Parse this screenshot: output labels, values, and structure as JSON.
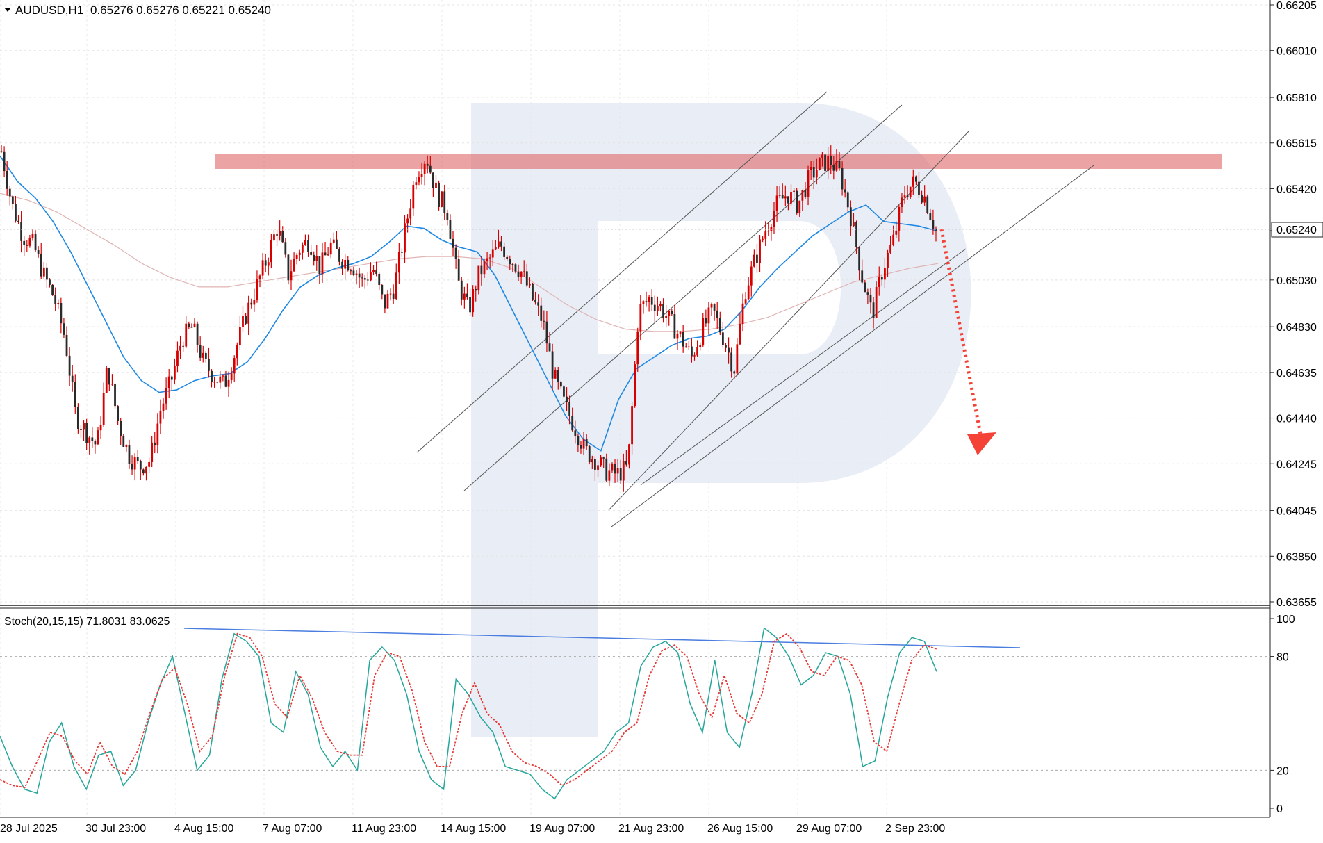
{
  "header": {
    "symbol": "AUDUSD,H1",
    "ohlc": "0.65276 0.65276 0.65221 0.65240"
  },
  "stoch_header": "Stoch(20,15,15) 71.8031 83.0625",
  "current_price_label": "0.65240",
  "colors": {
    "candle": "#d60000",
    "ma_fast": "#1e88e5",
    "ma_slow": "#e0b4b4",
    "resistance_zone": "#e06666",
    "forecast_arrow": "#f44336",
    "stoch_main": "#26a69a",
    "stoch_signal": "#e53935",
    "stoch_trendline": "#4a7de0",
    "watermark": "#e8ecf4"
  },
  "chart_data": [
    {
      "type": "candlestick",
      "title": "AUDUSD,H1",
      "y_ticks": [
        "0.66205",
        "0.66010",
        "0.65810",
        "0.65615",
        "0.65420",
        "0.65240",
        "0.65030",
        "0.64830",
        "0.64635",
        "0.64440",
        "0.64245",
        "0.64045",
        "0.63850",
        "0.63655"
      ],
      "x_ticks": [
        "28 Jul 2025",
        "30 Jul 23:00",
        "4 Aug 15:00",
        "7 Aug 07:00",
        "11 Aug 23:00",
        "14 Aug 15:00",
        "19 Aug 07:00",
        "21 Aug 23:00",
        "26 Aug 15:00",
        "29 Aug 07:00",
        "2 Sep 23:00"
      ],
      "ylim": [
        0.63655,
        0.66205
      ],
      "last_price": 0.6524,
      "resistance_zone": [
        0.6549,
        0.6556
      ],
      "price_path": [
        0.6558,
        0.6535,
        0.6522,
        0.6518,
        0.6505,
        0.6495,
        0.6478,
        0.6445,
        0.6438,
        0.6432,
        0.6466,
        0.6442,
        0.6428,
        0.6423,
        0.6426,
        0.6448,
        0.646,
        0.6478,
        0.6483,
        0.6468,
        0.6462,
        0.6458,
        0.6472,
        0.6488,
        0.65,
        0.6512,
        0.6526,
        0.6505,
        0.6516,
        0.652,
        0.6508,
        0.6518,
        0.6512,
        0.651,
        0.6502,
        0.6508,
        0.6492,
        0.65,
        0.6524,
        0.6548,
        0.6556,
        0.654,
        0.6532,
        0.6502,
        0.649,
        0.6506,
        0.6512,
        0.6518,
        0.6512,
        0.6506,
        0.6495,
        0.6485,
        0.6462,
        0.645,
        0.644,
        0.643,
        0.6426,
        0.6421,
        0.642,
        0.6423,
        0.649,
        0.6495,
        0.6492,
        0.6485,
        0.6478,
        0.647,
        0.6482,
        0.649,
        0.6478,
        0.6465,
        0.6498,
        0.6512,
        0.6525,
        0.6535,
        0.654,
        0.6535,
        0.6546,
        0.6552,
        0.6554,
        0.6548,
        0.653,
        0.6505,
        0.6488,
        0.6508,
        0.652,
        0.654,
        0.6545,
        0.6538,
        0.6524
      ],
      "series": [
        {
          "name": "",
          "type": "ma",
          "values": [
            0.6556,
            0.6545,
            0.6538,
            0.6528,
            0.6515,
            0.65,
            0.6485,
            0.647,
            0.646,
            0.6455,
            0.6456,
            0.646,
            0.6462,
            0.6463,
            0.6468,
            0.6478,
            0.649,
            0.65,
            0.6505,
            0.6508,
            0.651,
            0.6513,
            0.6519,
            0.6526,
            0.6525,
            0.652,
            0.6517,
            0.6515,
            0.6505,
            0.649,
            0.6475,
            0.646,
            0.6445,
            0.6435,
            0.643,
            0.6452,
            0.6465,
            0.647,
            0.6475,
            0.6478,
            0.6479,
            0.6482,
            0.649,
            0.65,
            0.6508,
            0.6515,
            0.6522,
            0.6527,
            0.6532,
            0.6535,
            0.6528,
            0.6527,
            0.6526,
            0.6524
          ]
        },
        {
          "name": "",
          "type": "ma",
          "values": [
            0.654,
            0.6537,
            0.6532,
            0.6525,
            0.6518,
            0.651,
            0.6504,
            0.65,
            0.65,
            0.6502,
            0.6504,
            0.6506,
            0.6508,
            0.651,
            0.6512,
            0.6513,
            0.6513,
            0.6512,
            0.6508,
            0.65,
            0.6492,
            0.6486,
            0.6482,
            0.6481,
            0.6481,
            0.6482,
            0.6484,
            0.6487,
            0.6492,
            0.6497,
            0.6502,
            0.6505,
            0.6508,
            0.651
          ]
        }
      ]
    },
    {
      "type": "line",
      "title": "Stoch(20,15,15)",
      "ylim": [
        0,
        100
      ],
      "y_ticks": [
        "100",
        "80",
        "20",
        "0"
      ],
      "levels": [
        80,
        20
      ],
      "series": [
        {
          "name": "",
          "values": [
            38,
            22,
            10,
            8,
            35,
            45,
            22,
            10,
            28,
            30,
            12,
            20,
            45,
            65,
            80,
            50,
            20,
            28,
            68,
            92,
            88,
            80,
            45,
            40,
            72,
            60,
            32,
            22,
            30,
            20,
            78,
            85,
            78,
            60,
            30,
            15,
            10,
            68,
            60,
            48,
            40,
            22,
            20,
            18,
            10,
            5,
            15,
            20,
            25,
            30,
            40,
            45,
            75,
            85,
            88,
            82,
            55,
            40,
            78,
            40,
            32,
            60,
            95,
            90,
            80,
            65,
            70,
            82,
            80,
            60,
            22,
            25,
            58,
            82,
            90,
            88,
            72
          ]
        },
        {
          "name": "",
          "values": [
            15,
            12,
            11,
            25,
            40,
            38,
            25,
            18,
            35,
            22,
            18,
            30,
            50,
            68,
            74,
            55,
            30,
            38,
            70,
            92,
            90,
            80,
            55,
            48,
            70,
            58,
            40,
            30,
            28,
            28,
            70,
            82,
            80,
            62,
            35,
            22,
            22,
            50,
            66,
            50,
            44,
            30,
            24,
            22,
            18,
            12,
            15,
            20,
            25,
            30,
            40,
            45,
            70,
            83,
            86,
            80,
            60,
            48,
            70,
            50,
            45,
            60,
            88,
            92,
            85,
            72,
            70,
            80,
            78,
            65,
            35,
            30,
            55,
            78,
            86,
            84
          ]
        }
      ]
    }
  ]
}
